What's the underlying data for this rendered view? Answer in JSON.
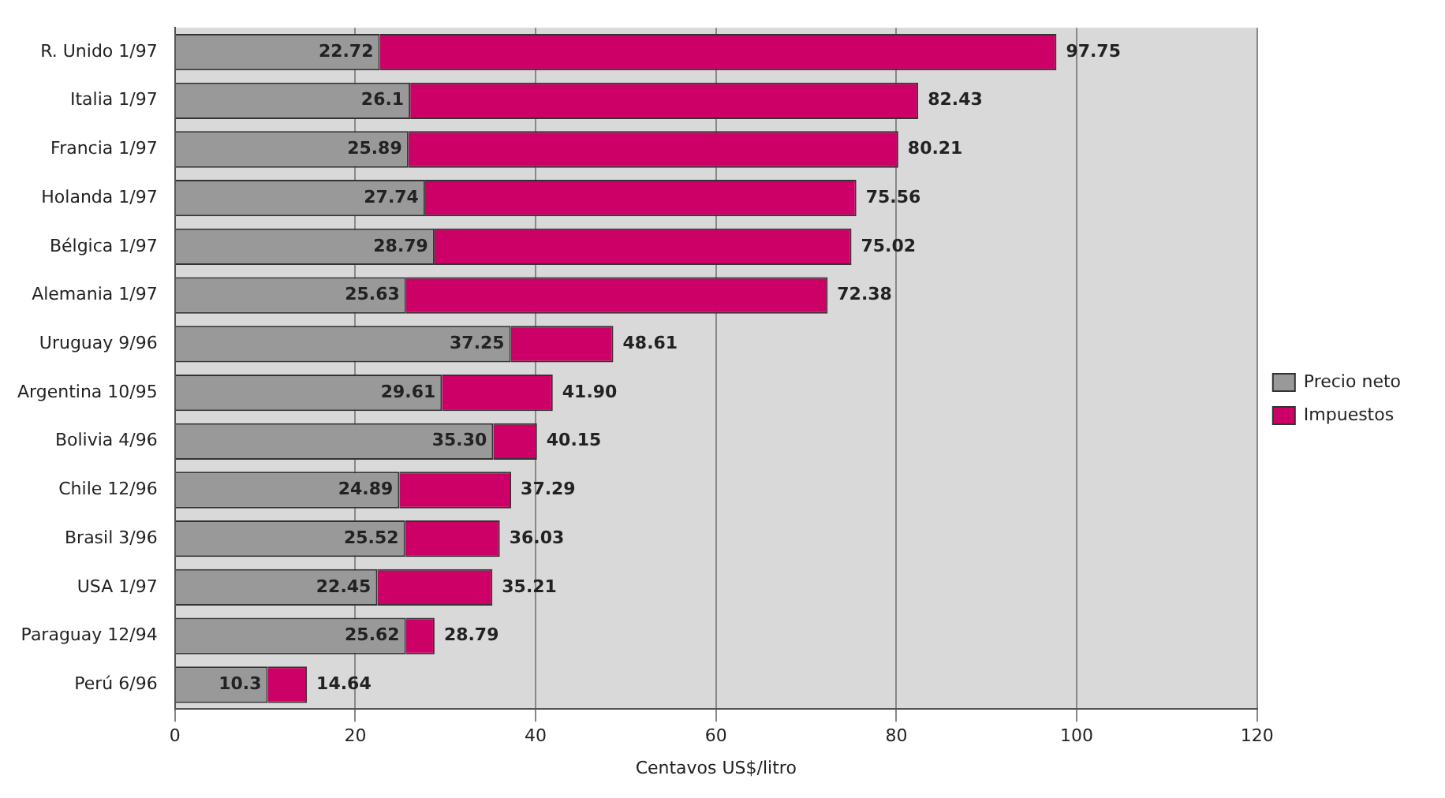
{
  "chart_data": {
    "type": "bar",
    "orientation": "horizontal",
    "stacked": true,
    "xlabel": "Centavos US$/litro",
    "categories": [
      "R. Unido 1/97",
      "Italia 1/97",
      "Francia 1/97",
      "Holanda 1/97",
      "Bélgica 1/97",
      "Alemania 1/97",
      "Uruguay 9/96",
      "Argentina 10/95",
      "Bolivia 4/96",
      "Chile 12/96",
      "Brasil 3/96",
      "USA 1/97",
      "Paraguay 12/94",
      "Perú 6/96"
    ],
    "series": [
      {
        "name": "Precio neto",
        "color": "#999999",
        "values": [
          22.72,
          26.1,
          25.89,
          27.74,
          28.79,
          25.63,
          37.25,
          29.61,
          35.3,
          24.89,
          25.52,
          22.45,
          25.62,
          10.3
        ],
        "value_labels": [
          "22.72",
          "26.1",
          "25.89",
          "27.74",
          "28.79",
          "25.63",
          "37.25",
          "29.61",
          "35.30",
          "24.89",
          "25.52",
          "22.45",
          "25.62",
          "10.3"
        ]
      },
      {
        "name": "Impuestos",
        "color": "#cc0066",
        "values": [
          75.03,
          56.33,
          54.32,
          47.82,
          46.23,
          46.75,
          11.36,
          12.29,
          4.85,
          12.4,
          10.51,
          12.76,
          3.17,
          4.34
        ]
      }
    ],
    "totals": [
      "97.75",
      "82.43",
      "80.21",
      "75.56",
      "75.02",
      "72.38",
      "48.61",
      "41.90",
      "40.15",
      "37.29",
      "36.03",
      "35.21",
      "28.79",
      "14.64"
    ],
    "xlim": [
      0,
      120
    ],
    "xticks": [
      0,
      20,
      40,
      60,
      80,
      100,
      120
    ],
    "grid": "x",
    "legend": "right"
  }
}
